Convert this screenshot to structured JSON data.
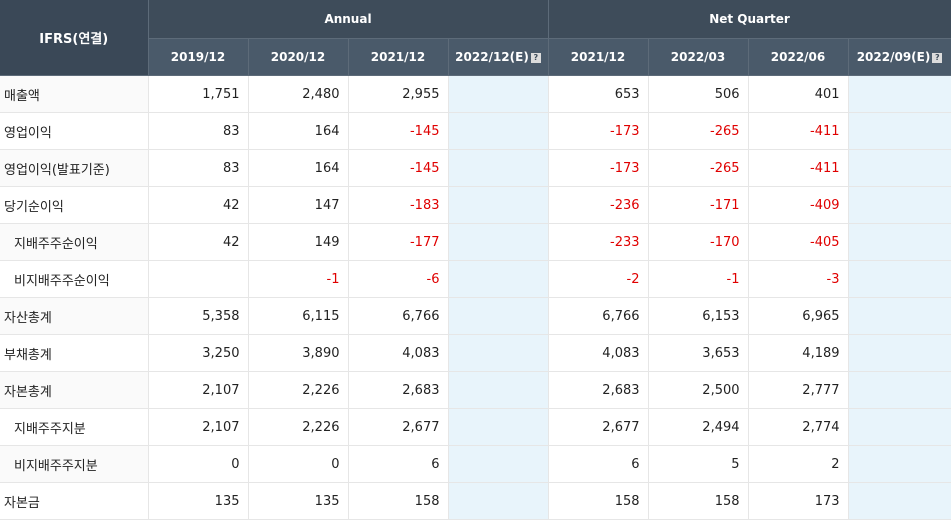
{
  "header": {
    "ifrs_label": "IFRS(연결)",
    "annual_label": "Annual",
    "quarter_label": "Net Quarter",
    "annual_periods": [
      "2019/12",
      "2020/12",
      "2021/12",
      "2022/12(E)"
    ],
    "quarter_periods": [
      "2021/12",
      "2022/03",
      "2022/06",
      "2022/09(E)"
    ],
    "estimate_icon_glyph": "?"
  },
  "rows": [
    {
      "label": "매출액",
      "sub": false,
      "annual": [
        "1,751",
        "2,480",
        "2,955",
        ""
      ],
      "quarter": [
        "653",
        "506",
        "401",
        ""
      ]
    },
    {
      "label": "영업이익",
      "sub": false,
      "annual": [
        "83",
        "164",
        "-145",
        ""
      ],
      "quarter": [
        "-173",
        "-265",
        "-411",
        ""
      ]
    },
    {
      "label": "영업이익(발표기준)",
      "sub": false,
      "annual": [
        "83",
        "164",
        "-145",
        ""
      ],
      "quarter": [
        "-173",
        "-265",
        "-411",
        ""
      ]
    },
    {
      "label": "당기순이익",
      "sub": false,
      "annual": [
        "42",
        "147",
        "-183",
        ""
      ],
      "quarter": [
        "-236",
        "-171",
        "-409",
        ""
      ]
    },
    {
      "label": "지배주주순이익",
      "sub": true,
      "annual": [
        "42",
        "149",
        "-177",
        ""
      ],
      "quarter": [
        "-233",
        "-170",
        "-405",
        ""
      ]
    },
    {
      "label": "비지배주주순이익",
      "sub": true,
      "annual": [
        "",
        "-1",
        "-6",
        ""
      ],
      "quarter": [
        "-2",
        "-1",
        "-3",
        ""
      ]
    },
    {
      "label": "자산총계",
      "sub": false,
      "annual": [
        "5,358",
        "6,115",
        "6,766",
        ""
      ],
      "quarter": [
        "6,766",
        "6,153",
        "6,965",
        ""
      ]
    },
    {
      "label": "부채총계",
      "sub": false,
      "annual": [
        "3,250",
        "3,890",
        "4,083",
        ""
      ],
      "quarter": [
        "4,083",
        "3,653",
        "4,189",
        ""
      ]
    },
    {
      "label": "자본총계",
      "sub": false,
      "annual": [
        "2,107",
        "2,226",
        "2,683",
        ""
      ],
      "quarter": [
        "2,683",
        "2,500",
        "2,777",
        ""
      ]
    },
    {
      "label": "지배주주지분",
      "sub": true,
      "annual": [
        "2,107",
        "2,226",
        "2,677",
        ""
      ],
      "quarter": [
        "2,677",
        "2,494",
        "2,774",
        ""
      ]
    },
    {
      "label": "비지배주주지분",
      "sub": true,
      "annual": [
        "0",
        "0",
        "6",
        ""
      ],
      "quarter": [
        "6",
        "5",
        "2",
        ""
      ]
    },
    {
      "label": "자본금",
      "sub": false,
      "annual": [
        "135",
        "135",
        "158",
        ""
      ],
      "quarter": [
        "158",
        "158",
        "173",
        ""
      ]
    }
  ],
  "colors": {
    "negative": "#e00000",
    "header_bg": "#3e4c5a",
    "estimate_bg": "#e8f4fb"
  }
}
